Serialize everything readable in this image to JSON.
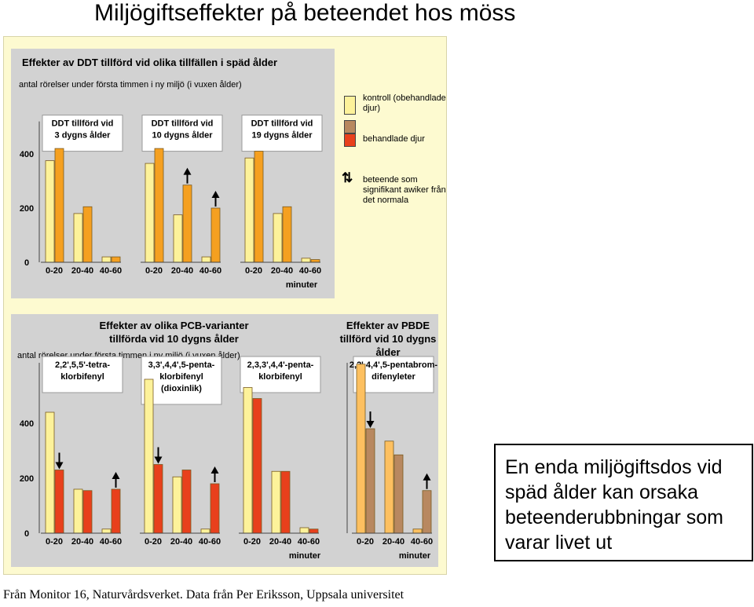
{
  "title": "Miljögiftseffekter på beteendet hos möss",
  "callout": "En enda miljögiftsdos vid späd ålder kan orsaka beteenderubbningar som varar livet ut",
  "footer": "Från Monitor 16, Naturvårdsverket. Data från Per Eriksson, Uppsala universitet",
  "colors": {
    "kontroll": "#fdf29a",
    "behandlade": "#f5a020",
    "pcb_behandlade": "#e8401c",
    "pbde_kontroll": "#fdc060",
    "pbde_behandlade": "#b88860",
    "panel": "#d2d2d2",
    "background": "#fdfad0"
  },
  "legend": {
    "kontroll": "kontroll (obehandlade djur)",
    "behandlade": "behandlade djur",
    "arrow": "beteende som signifikant awiker från det normala"
  },
  "chart_data": [
    {
      "type": "bar",
      "title": "Effekter av DDT tillförd vid olika tillfällen i späd ålder",
      "ylabel": "antal rörelser under första timmen i ny miljö (i vuxen ålder)",
      "xlabel": "minuter",
      "ylim": [
        0,
        520
      ],
      "yticks": [
        0,
        200,
        400
      ],
      "categories": [
        "0-20",
        "20-40",
        "40-60"
      ],
      "groups": [
        {
          "label": "DDT tillförd vid 3 dygns ålder",
          "series": [
            {
              "name": "kontroll (obehandlade djur)",
              "values": [
                375,
                180,
                20
              ]
            },
            {
              "name": "behandlade djur",
              "values": [
                420,
                205,
                20
              ]
            }
          ],
          "significant": []
        },
        {
          "label": "DDT tillförd vid 10 dygns ålder",
          "series": [
            {
              "name": "kontroll (obehandlade djur)",
              "values": [
                365,
                175,
                20
              ]
            },
            {
              "name": "behandlade djur",
              "values": [
                420,
                285,
                200
              ]
            }
          ],
          "significant": [
            {
              "category": "20-40",
              "direction": "up"
            },
            {
              "category": "40-60",
              "direction": "up"
            }
          ]
        },
        {
          "label": "DDT tillförd vid 19 dygns ålder",
          "series": [
            {
              "name": "kontroll (obehandlade djur)",
              "values": [
                385,
                180,
                15
              ]
            },
            {
              "name": "behandlade djur",
              "values": [
                410,
                205,
                10
              ]
            }
          ],
          "significant": []
        }
      ]
    },
    {
      "type": "bar",
      "title": "Effekter av olika PCB-varianter tillförda vid 10 dygns ålder",
      "ylabel": "antal rörelser under första timmen i ny miljö (i vuxen ålder)",
      "xlabel": "minuter",
      "ylim": [
        0,
        620
      ],
      "yticks": [
        0,
        200,
        400
      ],
      "categories": [
        "0-20",
        "20-40",
        "40-60"
      ],
      "groups": [
        {
          "label": "2,2',5,5'-tetra-klorbifenyl",
          "series": [
            {
              "name": "kontroll (obehandlade djur)",
              "values": [
                440,
                160,
                15
              ]
            },
            {
              "name": "behandlade djur",
              "values": [
                230,
                155,
                160
              ]
            }
          ],
          "significant": [
            {
              "category": "0-20",
              "direction": "down"
            },
            {
              "category": "40-60",
              "direction": "up"
            }
          ]
        },
        {
          "label": "3,3',4,4',5-penta-klorbifenyl (dioxinlik)",
          "series": [
            {
              "name": "kontroll (obehandlade djur)",
              "values": [
                560,
                205,
                15
              ]
            },
            {
              "name": "behandlade djur",
              "values": [
                250,
                230,
                180
              ]
            }
          ],
          "significant": [
            {
              "category": "0-20",
              "direction": "down"
            },
            {
              "category": "40-60",
              "direction": "up"
            }
          ]
        },
        {
          "label": "2,3,3',4,4'-penta-klorbifenyl",
          "series": [
            {
              "name": "kontroll (obehandlade djur)",
              "values": [
                530,
                225,
                20
              ]
            },
            {
              "name": "behandlade djur",
              "values": [
                490,
                225,
                15
              ]
            }
          ],
          "significant": []
        }
      ]
    },
    {
      "type": "bar",
      "title": "Effekter av PBDE tillförd vid 10 dygns ålder",
      "xlabel": "minuter",
      "ylim": [
        0,
        620
      ],
      "categories": [
        "0-20",
        "20-40",
        "40-60"
      ],
      "groups": [
        {
          "label": "2,2',4,4',5-pentabrom-difenyleter",
          "series": [
            {
              "name": "kontroll (obehandlade djur)",
              "values": [
                615,
                335,
                15
              ]
            },
            {
              "name": "behandlade djur",
              "values": [
                380,
                285,
                155
              ]
            }
          ],
          "significant": [
            {
              "category": "0-20",
              "direction": "down"
            },
            {
              "category": "40-60",
              "direction": "up"
            }
          ]
        }
      ]
    }
  ]
}
